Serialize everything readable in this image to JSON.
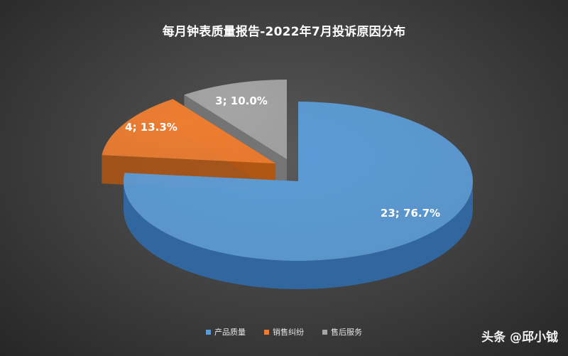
{
  "chart_data": {
    "type": "pie",
    "title": "每月钟表质量报告-2022年7月投诉原因分布",
    "categories": [
      "产品质量",
      "销售纠纷",
      "售后服务"
    ],
    "values": [
      23,
      4,
      3
    ],
    "percentages": [
      "76.7%",
      "13.3%",
      "10.0%"
    ],
    "data_labels": [
      "23; 76.7%",
      "4; 13.3%",
      "3; 10.0%"
    ],
    "colors": [
      "#5b9bd5",
      "#ed7d31",
      "#a5a5a5"
    ],
    "legend_position": "bottom",
    "exploded": true,
    "three_d": true
  },
  "watermark": "头条 @邱小钺"
}
